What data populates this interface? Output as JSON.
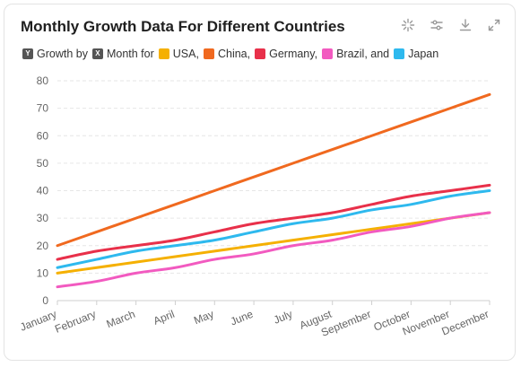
{
  "title": "Monthly Growth Data For Different Countries",
  "toolbar": {
    "icons": [
      "sparkle-icon",
      "sliders-icon",
      "download-icon",
      "expand-icon"
    ]
  },
  "legend": [
    {
      "label": "Growth by",
      "color": "#555555",
      "glyph": "Y"
    },
    {
      "label": "Month for",
      "color": "#555555",
      "glyph": "X"
    },
    {
      "label": "USA,",
      "color": "#f5b000",
      "glyph": ""
    },
    {
      "label": "China,",
      "color": "#f0691f",
      "glyph": ""
    },
    {
      "label": "Germany,",
      "color": "#e8304a",
      "glyph": ""
    },
    {
      "label": "Brazil, and",
      "color": "#f25ac0",
      "glyph": ""
    },
    {
      "label": "Japan",
      "color": "#2eb9ee",
      "glyph": ""
    }
  ],
  "chart_data": {
    "type": "line",
    "title": "Monthly Growth Data For Different Countries",
    "xlabel": "",
    "ylabel": "",
    "categories": [
      "January",
      "February",
      "March",
      "April",
      "May",
      "June",
      "July",
      "August",
      "September",
      "October",
      "November",
      "December"
    ],
    "ylim": [
      0,
      80
    ],
    "yticks": [
      0,
      10,
      20,
      30,
      40,
      50,
      60,
      70,
      80
    ],
    "grid": true,
    "legend_position": "top-left",
    "series": [
      {
        "name": "USA",
        "color": "#f5b000",
        "values": [
          10,
          12,
          14,
          16,
          18,
          20,
          22,
          24,
          26,
          28,
          30,
          32
        ]
      },
      {
        "name": "China",
        "color": "#f0691f",
        "values": [
          20,
          25,
          30,
          35,
          40,
          45,
          50,
          55,
          60,
          65,
          70,
          75
        ]
      },
      {
        "name": "Germany",
        "color": "#e8304a",
        "values": [
          15,
          18,
          20,
          22,
          25,
          28,
          30,
          32,
          35,
          38,
          40,
          42
        ]
      },
      {
        "name": "Brazil",
        "color": "#f25ac0",
        "values": [
          5,
          7,
          10,
          12,
          15,
          17,
          20,
          22,
          25,
          27,
          30,
          32
        ]
      },
      {
        "name": "Japan",
        "color": "#2eb9ee",
        "values": [
          12,
          15,
          18,
          20,
          22,
          25,
          28,
          30,
          33,
          35,
          38,
          40
        ]
      }
    ]
  }
}
